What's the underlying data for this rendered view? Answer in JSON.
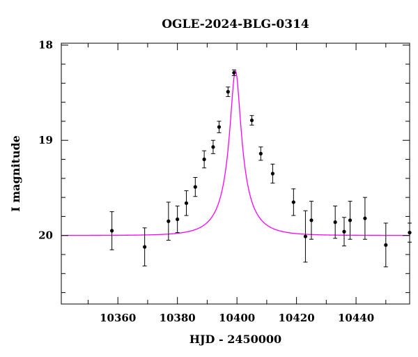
{
  "chart_data": {
    "type": "scatter",
    "title": "OGLE-2024-BLG-0314",
    "xlabel": "HJD - 2450000",
    "ylabel": "I magnitude",
    "xlim": [
      10341,
      10458
    ],
    "ylim": [
      20.72,
      17.98
    ],
    "y_inverted": true,
    "x_ticks": [
      10360,
      10380,
      10400,
      10420,
      10440
    ],
    "x_tick_labels": [
      "10360",
      "10380",
      "10400",
      "10420",
      "10440"
    ],
    "y_ticks": [
      18,
      19,
      20
    ],
    "y_tick_labels": [
      "18",
      "19",
      "20"
    ],
    "grid": false,
    "series": [
      {
        "kind": "points_with_errorbars",
        "color": "#000000",
        "points": [
          {
            "x": 10358.0,
            "y": 19.95,
            "err": 0.2
          },
          {
            "x": 10369.0,
            "y": 20.12,
            "err": 0.2
          },
          {
            "x": 10377.0,
            "y": 19.85,
            "err": 0.2
          },
          {
            "x": 10380.0,
            "y": 19.83,
            "err": 0.14
          },
          {
            "x": 10383.0,
            "y": 19.66,
            "err": 0.13
          },
          {
            "x": 10386.0,
            "y": 19.49,
            "err": 0.1
          },
          {
            "x": 10389.0,
            "y": 19.2,
            "err": 0.09
          },
          {
            "x": 10392.0,
            "y": 19.07,
            "err": 0.07
          },
          {
            "x": 10394.0,
            "y": 18.86,
            "err": 0.06
          },
          {
            "x": 10397.0,
            "y": 18.49,
            "err": 0.05
          },
          {
            "x": 10399.0,
            "y": 18.29,
            "err": 0.03
          },
          {
            "x": 10405.0,
            "y": 18.79,
            "err": 0.05
          },
          {
            "x": 10408.0,
            "y": 19.14,
            "err": 0.07
          },
          {
            "x": 10412.0,
            "y": 19.35,
            "err": 0.1
          },
          {
            "x": 10419.0,
            "y": 19.65,
            "err": 0.14
          },
          {
            "x": 10423.0,
            "y": 20.01,
            "err": 0.27
          },
          {
            "x": 10425.0,
            "y": 19.84,
            "err": 0.2
          },
          {
            "x": 10433.0,
            "y": 19.86,
            "err": 0.17
          },
          {
            "x": 10436.0,
            "y": 19.96,
            "err": 0.15
          },
          {
            "x": 10438.0,
            "y": 19.84,
            "err": 0.2
          },
          {
            "x": 10443.0,
            "y": 19.82,
            "err": 0.22
          },
          {
            "x": 10450.0,
            "y": 20.1,
            "err": 0.23
          },
          {
            "x": 10458.0,
            "y": 19.97,
            "err": 0.1
          }
        ]
      },
      {
        "kind": "model_curve",
        "color": "#ff00ff",
        "t0": 10399.5,
        "tE": 9.4,
        "u0": 0.2,
        "baseline_mag": 20.0
      }
    ]
  }
}
